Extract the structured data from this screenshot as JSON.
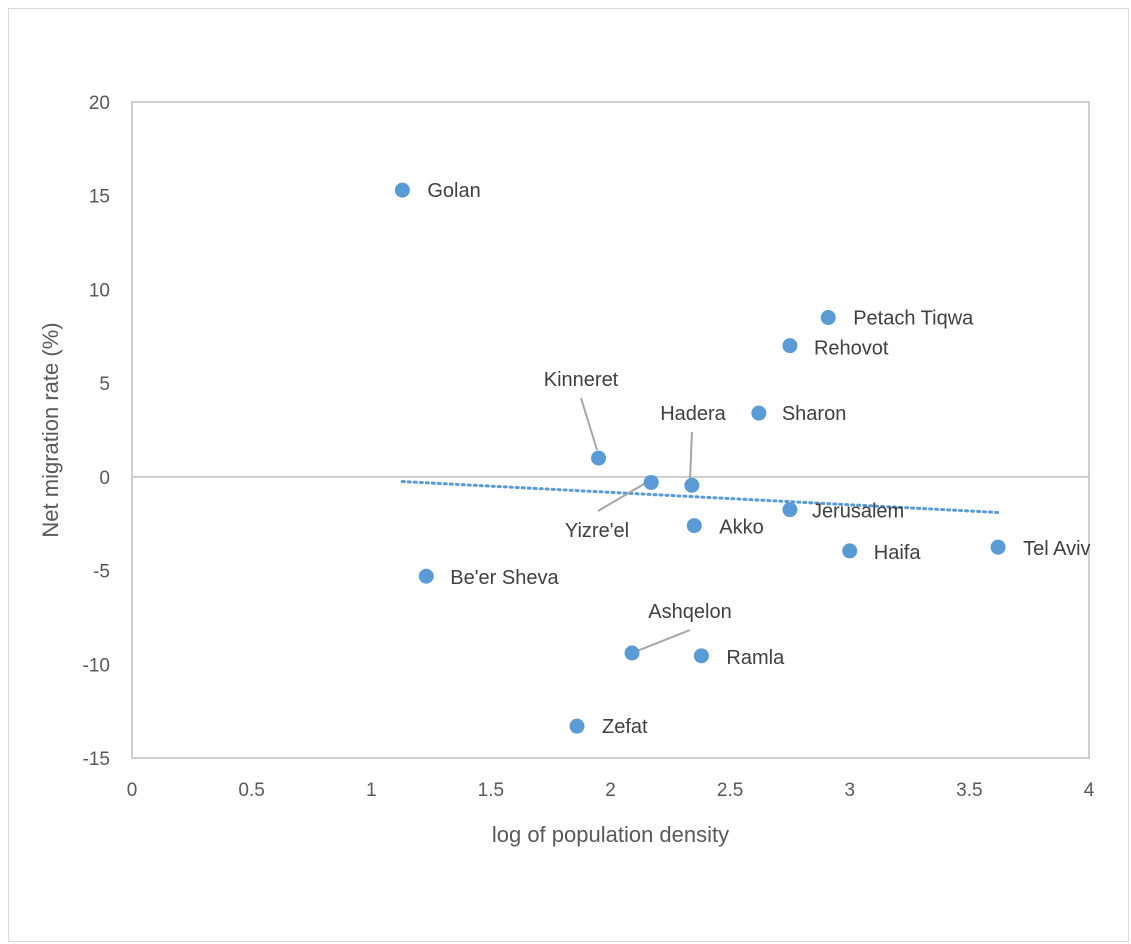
{
  "chart_data": {
    "type": "scatter",
    "title": "",
    "xlabel": "log of population density",
    "ylabel": "Net migration rate (%)",
    "xlim": [
      0,
      4
    ],
    "ylim": [
      -15,
      20
    ],
    "x_ticks": [
      {
        "value": 0,
        "label": "0"
      },
      {
        "value": 0.5,
        "label": "0.5"
      },
      {
        "value": 1,
        "label": "1"
      },
      {
        "value": 1.5,
        "label": "1.5"
      },
      {
        "value": 2,
        "label": "2"
      },
      {
        "value": 2.5,
        "label": "2.5"
      },
      {
        "value": 3,
        "label": "3"
      },
      {
        "value": 3.5,
        "label": "3.5"
      },
      {
        "value": 4,
        "label": "4"
      }
    ],
    "y_ticks": [
      {
        "value": 20,
        "label": "20"
      },
      {
        "value": 15,
        "label": "15"
      },
      {
        "value": 10,
        "label": "10"
      },
      {
        "value": 5,
        "label": "5"
      },
      {
        "value": 0,
        "label": "0"
      },
      {
        "value": -5,
        "label": "-5"
      },
      {
        "value": -10,
        "label": "-10"
      },
      {
        "value": -15,
        "label": "-15"
      }
    ],
    "grid": false,
    "legend": "none",
    "marker_color": "#5b9bd5",
    "trendline": {
      "type": "linear",
      "style": "dotted",
      "color": "#5b9bd5",
      "x": [
        1.13,
        3.62
      ],
      "y": [
        -0.25,
        -1.9
      ]
    },
    "points": [
      {
        "label": "Golan",
        "x": 1.13,
        "y": 15.3
      },
      {
        "label": "Petach Tiqwa",
        "x": 2.91,
        "y": 8.5
      },
      {
        "label": "Rehovot",
        "x": 2.75,
        "y": 7.0
      },
      {
        "label": "Sharon",
        "x": 2.62,
        "y": 3.4
      },
      {
        "label": "Kinneret",
        "x": 1.95,
        "y": 1.0
      },
      {
        "label": "Yizre'el",
        "x": 2.17,
        "y": -0.3
      },
      {
        "label": "Hadera",
        "x": 2.34,
        "y": -0.45
      },
      {
        "label": "Jerusalem",
        "x": 2.75,
        "y": -1.75
      },
      {
        "label": "Akko",
        "x": 2.35,
        "y": -2.6
      },
      {
        "label": "Haifa",
        "x": 3.0,
        "y": -3.95
      },
      {
        "label": "Tel Aviv",
        "x": 3.62,
        "y": -3.75
      },
      {
        "label": "Be'er Sheva",
        "x": 1.23,
        "y": -5.3
      },
      {
        "label": "Ashqelon",
        "x": 2.09,
        "y": -9.4
      },
      {
        "label": "Ramla",
        "x": 2.38,
        "y": -9.55
      },
      {
        "label": "Zefat",
        "x": 1.86,
        "y": -13.3
      }
    ]
  }
}
